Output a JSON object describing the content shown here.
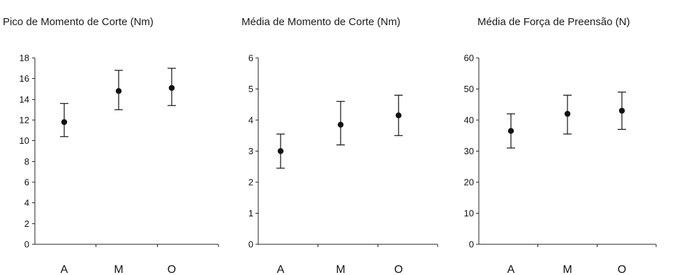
{
  "chart_data": [
    {
      "type": "scatter",
      "title": "Pico de Momento de Corte (Nm)",
      "categories": [
        "A",
        "M",
        "O"
      ],
      "values": [
        11.8,
        14.8,
        15.1
      ],
      "error_low": [
        10.4,
        13.0,
        13.4
      ],
      "error_high": [
        13.6,
        16.8,
        17.0
      ],
      "yticks": [
        0,
        2,
        4,
        6,
        8,
        10,
        12,
        14,
        16,
        18
      ],
      "ylim": [
        0,
        18
      ],
      "grid": false,
      "legend": "none"
    },
    {
      "type": "scatter",
      "title": "Média de Momento de Corte (Nm)",
      "categories": [
        "A",
        "M",
        "O"
      ],
      "values": [
        3.0,
        3.85,
        4.15
      ],
      "error_low": [
        2.45,
        3.2,
        3.5
      ],
      "error_high": [
        3.55,
        4.6,
        4.8
      ],
      "yticks": [
        0,
        1,
        2,
        3,
        4,
        5,
        6
      ],
      "ylim": [
        0,
        6
      ],
      "grid": false,
      "legend": "none"
    },
    {
      "type": "scatter",
      "title": "Média de Força de Preensão (N)",
      "categories": [
        "A",
        "M",
        "O"
      ],
      "values": [
        36.5,
        42.0,
        43.0
      ],
      "error_low": [
        31.0,
        35.5,
        37.0
      ],
      "error_high": [
        42.0,
        48.0,
        49.0
      ],
      "yticks": [
        0,
        10,
        20,
        30,
        40,
        50,
        60
      ],
      "ylim": [
        0,
        60
      ],
      "grid": false,
      "legend": "none"
    }
  ]
}
